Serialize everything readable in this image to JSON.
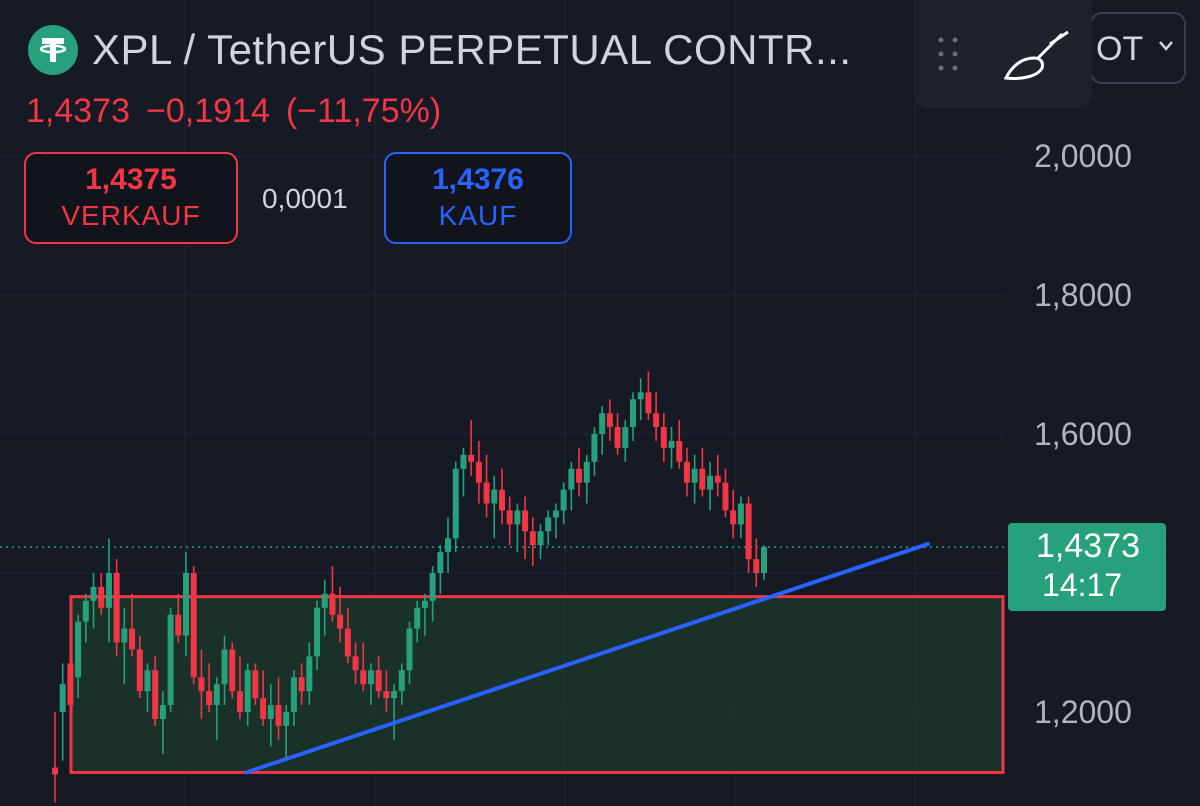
{
  "header": {
    "title": "XPL / TetherUS PERPETUAL CONTR...",
    "last_price": "1,4373",
    "change": "−0,1914",
    "change_percent": "(−11,75%)"
  },
  "trade": {
    "sell_price": "1,4375",
    "sell_label": "VERKAUF",
    "spread": "0,0001",
    "buy_price": "1,4376",
    "buy_label": "KAUF"
  },
  "menu": {
    "partial_text": "OT"
  },
  "axis": {
    "ticks": [
      "2,0000",
      "1,8000",
      "1,6000",
      "1,2000"
    ]
  },
  "price_label": {
    "price": "1,4373",
    "countdown": "14:17"
  },
  "icons": [
    "tether-logo-icon",
    "drag-handle-icon",
    "brush-icon",
    "chevron-down-icon"
  ],
  "colors": {
    "up": "#26a17b",
    "down": "#f23645",
    "trendline": "#2962ff",
    "zone_border": "#f23645",
    "zone_fill": "#1c3a2c"
  },
  "chart_data": {
    "type": "candlestick",
    "ylim": [
      1.1,
      2.1
    ],
    "yticks": [
      2.0,
      1.8,
      1.6,
      1.2
    ],
    "current_price": 1.4373,
    "candles": [
      [
        1.12,
        1.2,
        1.07,
        1.11
      ],
      [
        1.2,
        1.27,
        1.13,
        1.24
      ],
      [
        1.27,
        1.3,
        1.2,
        1.21
      ],
      [
        1.25,
        1.34,
        1.22,
        1.33
      ],
      [
        1.33,
        1.37,
        1.3,
        1.36
      ],
      [
        1.36,
        1.4,
        1.32,
        1.38
      ],
      [
        1.38,
        1.4,
        1.34,
        1.35
      ],
      [
        1.35,
        1.45,
        1.3,
        1.4
      ],
      [
        1.4,
        1.42,
        1.28,
        1.3
      ],
      [
        1.3,
        1.35,
        1.24,
        1.32
      ],
      [
        1.32,
        1.37,
        1.28,
        1.29
      ],
      [
        1.29,
        1.31,
        1.22,
        1.23
      ],
      [
        1.23,
        1.27,
        1.2,
        1.26
      ],
      [
        1.26,
        1.28,
        1.18,
        1.19
      ],
      [
        1.19,
        1.23,
        1.14,
        1.21
      ],
      [
        1.21,
        1.35,
        1.2,
        1.34
      ],
      [
        1.34,
        1.37,
        1.3,
        1.31
      ],
      [
        1.31,
        1.43,
        1.28,
        1.4
      ],
      [
        1.4,
        1.41,
        1.24,
        1.25
      ],
      [
        1.25,
        1.29,
        1.19,
        1.23
      ],
      [
        1.23,
        1.27,
        1.2,
        1.21
      ],
      [
        1.21,
        1.25,
        1.16,
        1.24
      ],
      [
        1.24,
        1.31,
        1.21,
        1.29
      ],
      [
        1.29,
        1.3,
        1.22,
        1.23
      ],
      [
        1.23,
        1.28,
        1.19,
        1.2
      ],
      [
        1.2,
        1.27,
        1.18,
        1.26
      ],
      [
        1.26,
        1.27,
        1.21,
        1.22
      ],
      [
        1.22,
        1.26,
        1.18,
        1.19
      ],
      [
        1.19,
        1.24,
        1.15,
        1.21
      ],
      [
        1.21,
        1.25,
        1.16,
        1.18
      ],
      [
        1.18,
        1.21,
        1.13,
        1.2
      ],
      [
        1.2,
        1.26,
        1.18,
        1.25
      ],
      [
        1.25,
        1.27,
        1.21,
        1.23
      ],
      [
        1.23,
        1.3,
        1.21,
        1.28
      ],
      [
        1.28,
        1.36,
        1.26,
        1.35
      ],
      [
        1.35,
        1.39,
        1.31,
        1.37
      ],
      [
        1.37,
        1.41,
        1.33,
        1.34
      ],
      [
        1.34,
        1.38,
        1.3,
        1.32
      ],
      [
        1.32,
        1.35,
        1.27,
        1.28
      ],
      [
        1.28,
        1.3,
        1.24,
        1.26
      ],
      [
        1.26,
        1.3,
        1.23,
        1.24
      ],
      [
        1.24,
        1.27,
        1.21,
        1.26
      ],
      [
        1.26,
        1.28,
        1.22,
        1.23
      ],
      [
        1.23,
        1.26,
        1.2,
        1.22
      ],
      [
        1.22,
        1.24,
        1.16,
        1.23
      ],
      [
        1.23,
        1.27,
        1.21,
        1.26
      ],
      [
        1.26,
        1.33,
        1.24,
        1.32
      ],
      [
        1.32,
        1.36,
        1.3,
        1.35
      ],
      [
        1.35,
        1.37,
        1.31,
        1.36
      ],
      [
        1.36,
        1.41,
        1.33,
        1.4
      ],
      [
        1.4,
        1.44,
        1.37,
        1.43
      ],
      [
        1.43,
        1.48,
        1.4,
        1.45
      ],
      [
        1.45,
        1.56,
        1.43,
        1.55
      ],
      [
        1.55,
        1.58,
        1.51,
        1.57
      ],
      [
        1.57,
        1.62,
        1.54,
        1.56
      ],
      [
        1.56,
        1.59,
        1.5,
        1.53
      ],
      [
        1.53,
        1.57,
        1.48,
        1.5
      ],
      [
        1.5,
        1.54,
        1.45,
        1.52
      ],
      [
        1.52,
        1.55,
        1.47,
        1.49
      ],
      [
        1.49,
        1.51,
        1.44,
        1.47
      ],
      [
        1.47,
        1.5,
        1.43,
        1.49
      ],
      [
        1.49,
        1.51,
        1.42,
        1.46
      ],
      [
        1.46,
        1.48,
        1.41,
        1.44
      ],
      [
        1.44,
        1.47,
        1.42,
        1.46
      ],
      [
        1.46,
        1.49,
        1.44,
        1.48
      ],
      [
        1.48,
        1.5,
        1.45,
        1.49
      ],
      [
        1.49,
        1.53,
        1.47,
        1.52
      ],
      [
        1.52,
        1.56,
        1.49,
        1.55
      ],
      [
        1.55,
        1.58,
        1.51,
        1.53
      ],
      [
        1.53,
        1.57,
        1.5,
        1.56
      ],
      [
        1.56,
        1.61,
        1.54,
        1.6
      ],
      [
        1.6,
        1.64,
        1.57,
        1.63
      ],
      [
        1.63,
        1.65,
        1.59,
        1.61
      ],
      [
        1.61,
        1.63,
        1.57,
        1.58
      ],
      [
        1.58,
        1.62,
        1.56,
        1.61
      ],
      [
        1.61,
        1.66,
        1.59,
        1.65
      ],
      [
        1.65,
        1.68,
        1.62,
        1.66
      ],
      [
        1.66,
        1.69,
        1.62,
        1.63
      ],
      [
        1.63,
        1.66,
        1.59,
        1.61
      ],
      [
        1.61,
        1.63,
        1.56,
        1.58
      ],
      [
        1.58,
        1.61,
        1.55,
        1.59
      ],
      [
        1.59,
        1.62,
        1.55,
        1.56
      ],
      [
        1.56,
        1.58,
        1.51,
        1.53
      ],
      [
        1.53,
        1.57,
        1.5,
        1.55
      ],
      [
        1.55,
        1.58,
        1.51,
        1.52
      ],
      [
        1.52,
        1.56,
        1.49,
        1.54
      ],
      [
        1.54,
        1.57,
        1.51,
        1.53
      ],
      [
        1.53,
        1.55,
        1.48,
        1.49
      ],
      [
        1.49,
        1.52,
        1.45,
        1.47
      ],
      [
        1.47,
        1.51,
        1.45,
        1.5
      ],
      [
        1.5,
        1.51,
        1.4,
        1.42
      ],
      [
        1.42,
        1.45,
        1.38,
        1.4
      ],
      [
        1.4,
        1.44,
        1.39,
        1.4373
      ]
    ],
    "support_zone": {
      "top": 1.366,
      "bottom": 1.113
    },
    "trendline": {
      "start": 1.113,
      "end": 1.4373
    }
  }
}
